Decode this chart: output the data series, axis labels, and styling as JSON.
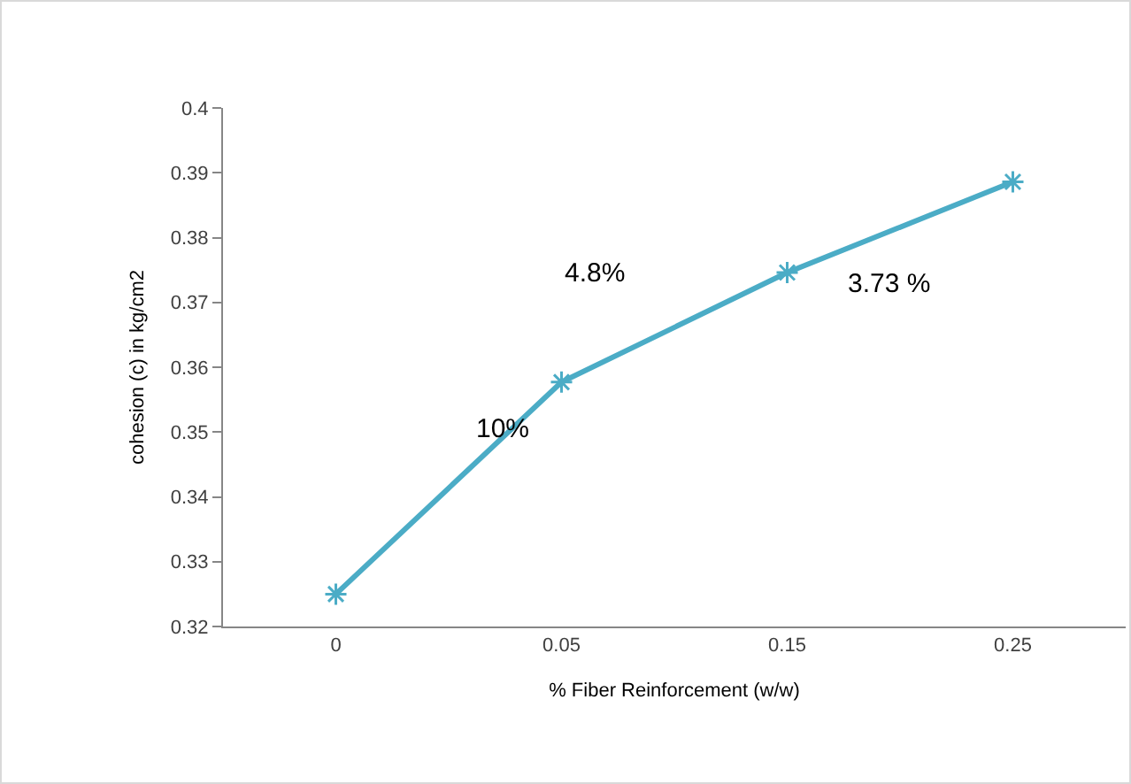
{
  "chart_data": {
    "type": "line",
    "xlabel": "% Fiber Reinforcement (w/w)",
    "ylabel": "cohesion (c) in kg/cm2",
    "categories": [
      "0",
      "0.05",
      "0.15",
      "0.25"
    ],
    "series": [
      {
        "color": "#4bacc6",
        "values": [
          0.325,
          0.3577,
          0.3746,
          0.3886
        ]
      }
    ],
    "ylim": [
      0.32,
      0.4
    ],
    "yticks": [
      0.32,
      0.33,
      0.34,
      0.35,
      0.36,
      0.37,
      0.38,
      0.39,
      0.4
    ],
    "marker": "cross",
    "grid": false,
    "annotations": [
      "10%",
      "4.8%",
      "3.73 %"
    ]
  }
}
